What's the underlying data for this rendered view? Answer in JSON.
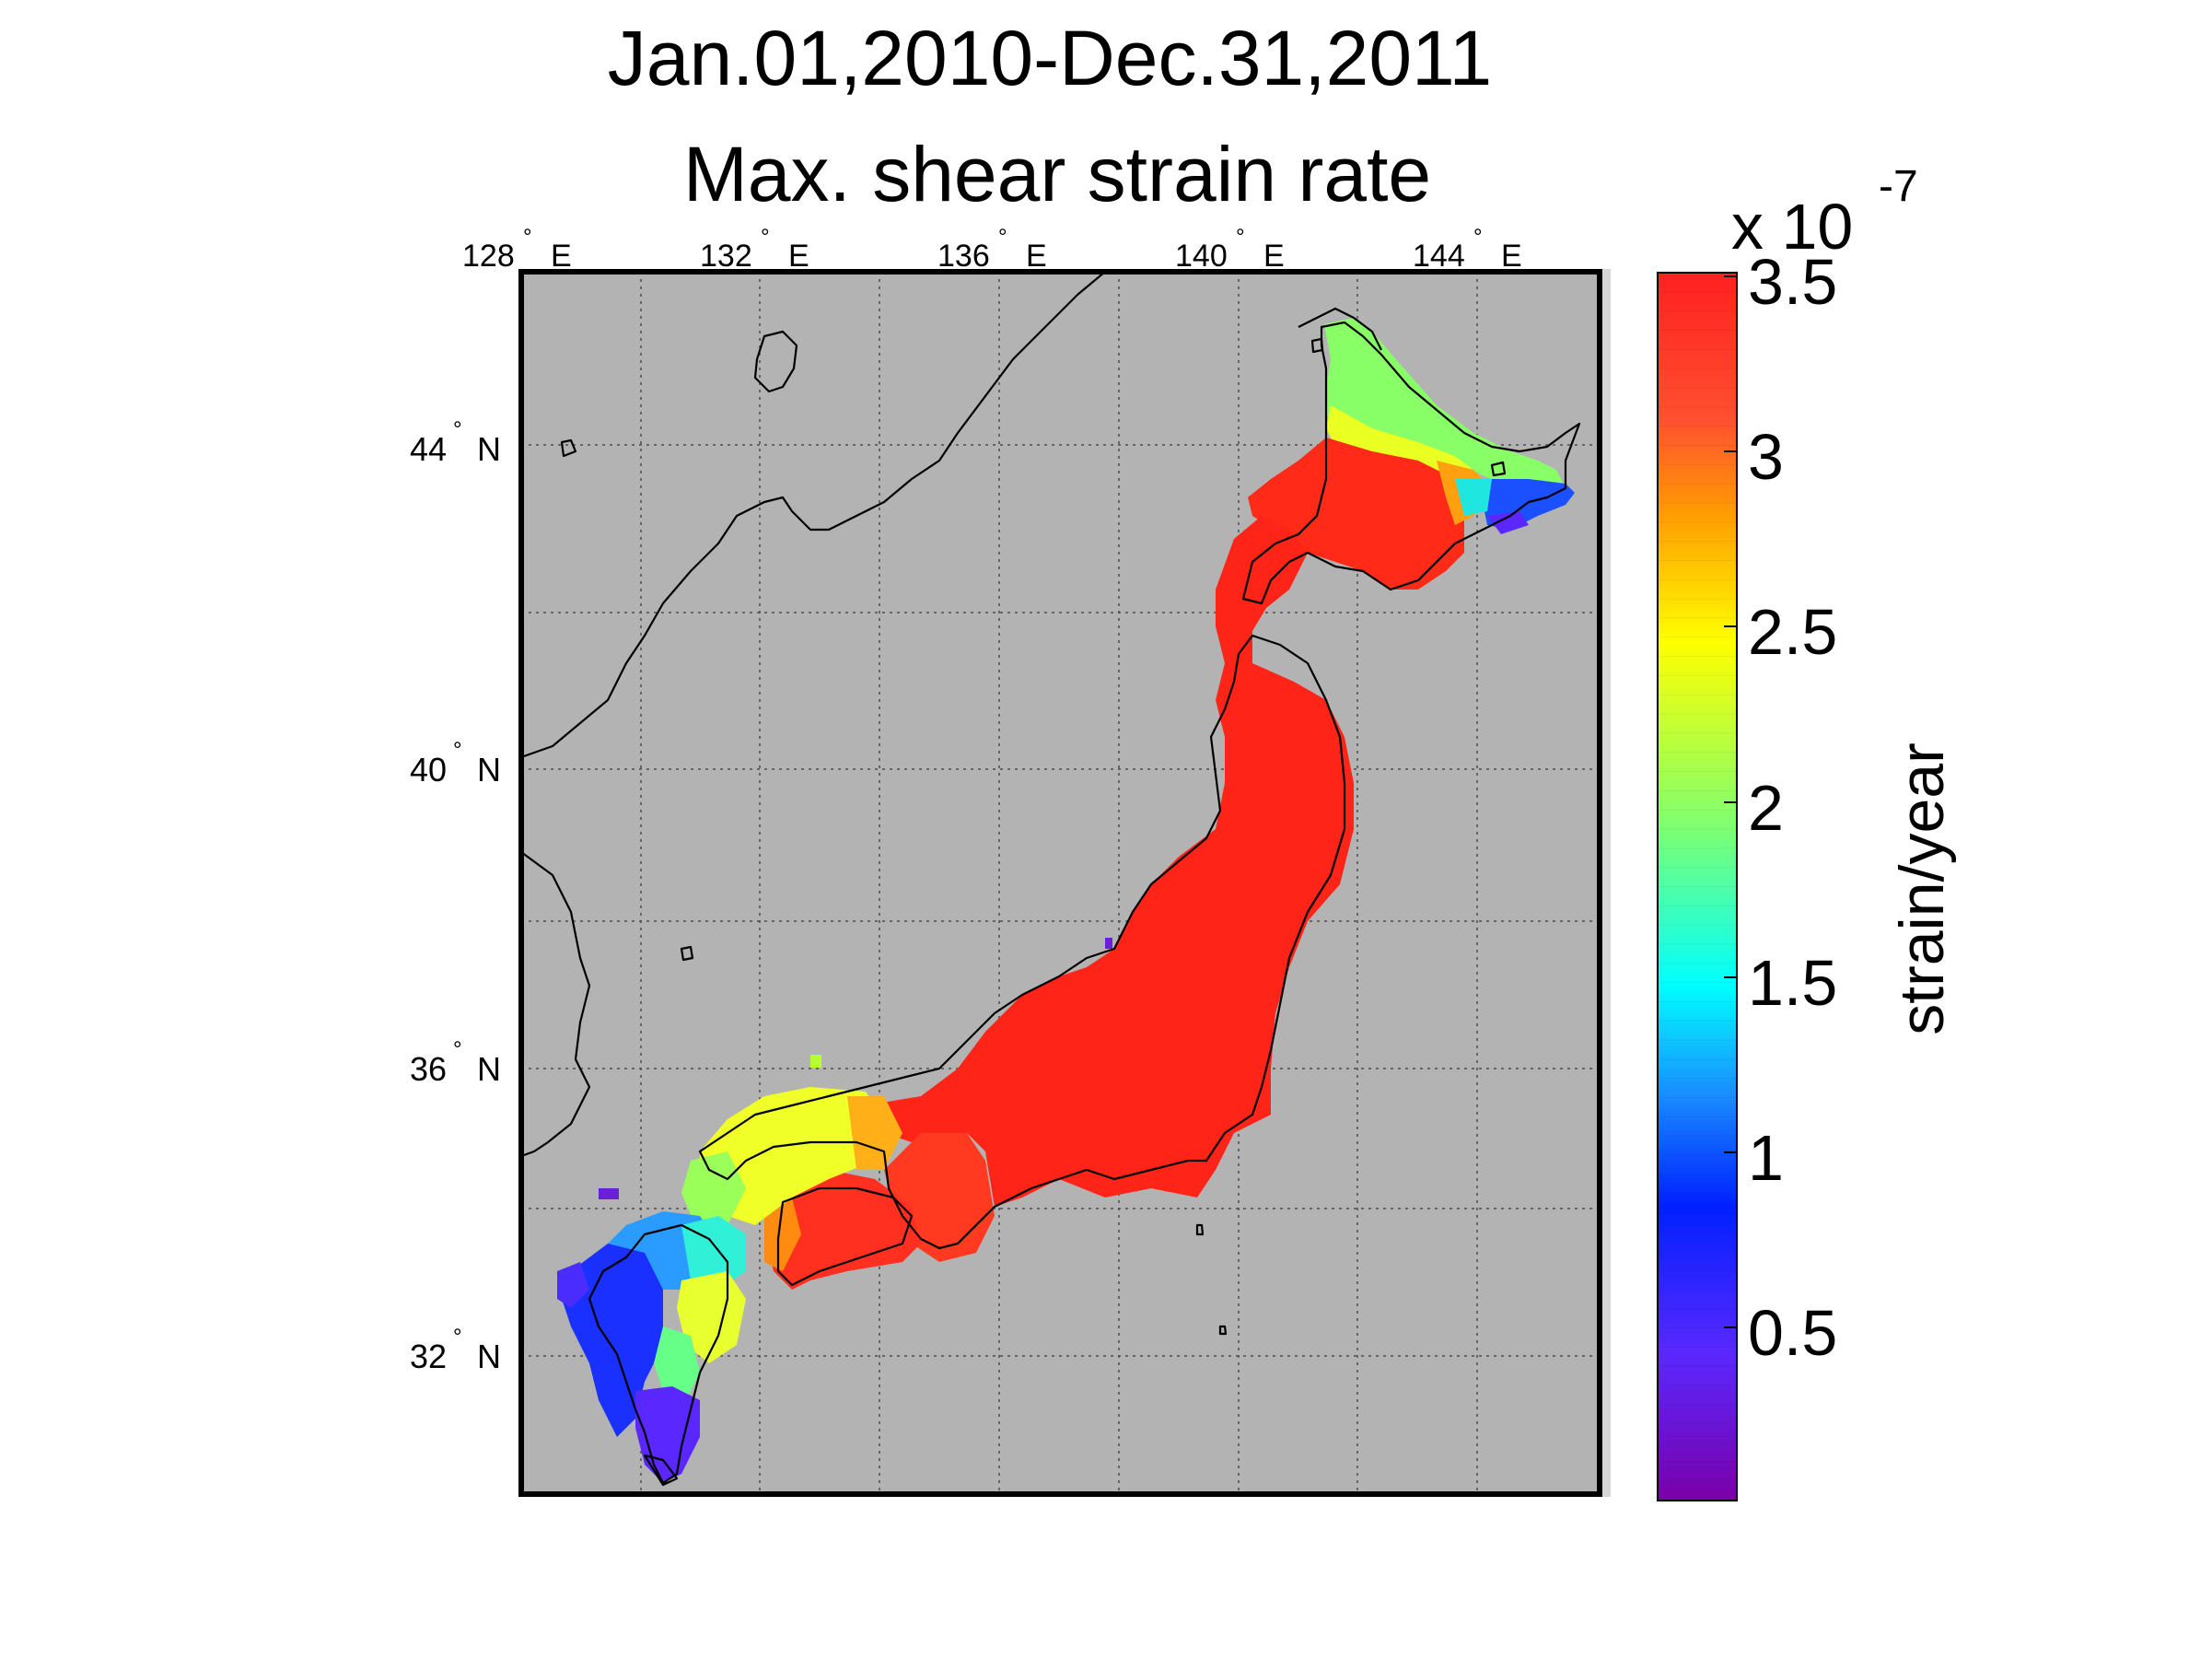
{
  "title": {
    "line1": "Jan.01,2010-Dec.31,2011",
    "line2": "Max. shear strain rate"
  },
  "map": {
    "background": "#b3b3b3",
    "lon_ticks": [
      {
        "value": 128,
        "label": "128",
        "suffix": "E"
      },
      {
        "value": 132,
        "label": "132",
        "suffix": "E"
      },
      {
        "value": 136,
        "label": "136",
        "suffix": "E"
      },
      {
        "value": 140,
        "label": "140",
        "suffix": "E"
      },
      {
        "value": 144,
        "label": "144",
        "suffix": "E"
      }
    ],
    "lat_ticks": [
      {
        "value": 44,
        "label": "44",
        "suffix": "N"
      },
      {
        "value": 40,
        "label": "40",
        "suffix": "N"
      },
      {
        "value": 36,
        "label": "36",
        "suffix": "N"
      },
      {
        "value": 32,
        "label": "32",
        "suffix": "N"
      }
    ],
    "degree_symbol": "°",
    "lon_range": [
      128,
      146
    ],
    "lat_range": [
      30.3,
      46.1
    ],
    "grid": "dotted",
    "strain_regions": [
      {
        "name": "hokkaido-north",
        "value": 2.1
      },
      {
        "name": "hokkaido-central",
        "value": 3.5
      },
      {
        "name": "hokkaido-east",
        "value": 1.0
      },
      {
        "name": "tohoku",
        "value": 3.5
      },
      {
        "name": "chubu-kanto",
        "value": 3.5
      },
      {
        "name": "kinki",
        "value": 3.3
      },
      {
        "name": "chugoku",
        "value": 2.3
      },
      {
        "name": "shikoku",
        "value": 3.0
      },
      {
        "name": "kyushu-north",
        "value": 1.2
      },
      {
        "name": "kyushu-central",
        "value": 2.4
      },
      {
        "name": "kyushu-south",
        "value": 0.6
      }
    ]
  },
  "colorbar": {
    "exponent_base": "x 10",
    "exponent_power": "-7",
    "unit_label": "strain/year",
    "range": [
      0,
      3.5
    ],
    "ticks": [
      "3.5",
      "3",
      "2.5",
      "2",
      "1.5",
      "1",
      "0.5"
    ],
    "tick_values": [
      3.5,
      3.0,
      2.5,
      2.0,
      1.5,
      1.0,
      0.5
    ],
    "colormap": "jet",
    "colors": [
      "#7f00bf",
      "#0000ff",
      "#00ffff",
      "#7fff7f",
      "#ffff00",
      "#ff7f00",
      "#ff2a1a"
    ]
  }
}
